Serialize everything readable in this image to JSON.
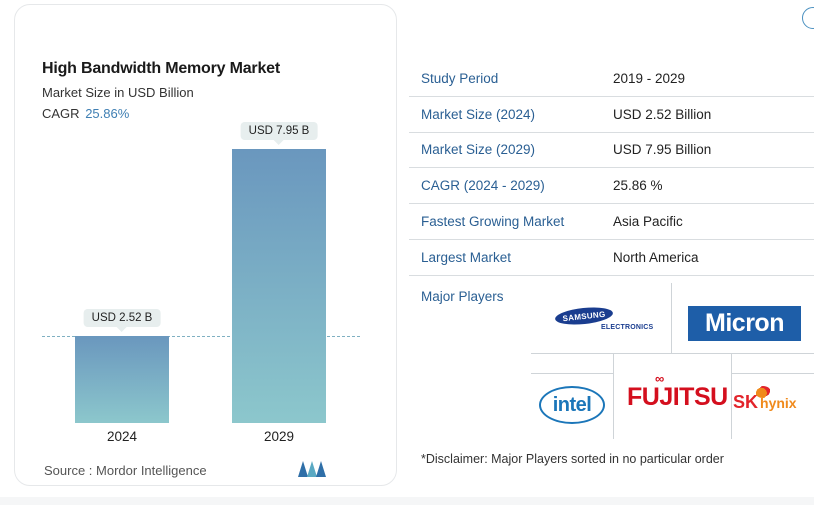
{
  "chart": {
    "title": "High Bandwidth Memory Market",
    "subtitle": "Market Size in USD Billion",
    "cagr_label": "CAGR",
    "cagr_value": "25.86%",
    "source": "Source : Mordor Intelligence"
  },
  "chart_data": {
    "type": "bar",
    "categories": [
      "2024",
      "2029"
    ],
    "values": [
      2.52,
      7.95
    ],
    "data_labels": [
      "USD 2.52 B",
      "USD 7.95 B"
    ],
    "title": "High Bandwidth Memory Market",
    "ylabel": "Market Size in USD Billion",
    "ylim": [
      0,
      7.95
    ]
  },
  "table": {
    "rows": [
      {
        "label": "Study Period",
        "value": "2019 - 2029"
      },
      {
        "label": "Market Size (2024)",
        "value": "USD 2.52 Billion"
      },
      {
        "label": "Market Size (2029)",
        "value": "USD 7.95 Billion"
      },
      {
        "label": "CAGR (2024 - 2029)",
        "value": "25.86 %"
      },
      {
        "label": "Fastest Growing Market",
        "value": "Asia Pacific"
      },
      {
        "label": "Largest Market",
        "value": "North America"
      }
    ]
  },
  "players": {
    "heading": "Major Players",
    "disclaimer": "*Disclaimer: Major Players sorted in no particular order",
    "logos": {
      "samsung": "SAMSUNG",
      "samsung_sub": "ELECTRONICS",
      "micron": "Micron",
      "intel": "intel",
      "fujitsu": "FUJITSU",
      "sk": "SK",
      "hynix": "hynix"
    }
  },
  "colors": {
    "bar_top": "#6a97be",
    "bar_bottom": "#8cc7cc",
    "accent": "#2a5f93"
  }
}
